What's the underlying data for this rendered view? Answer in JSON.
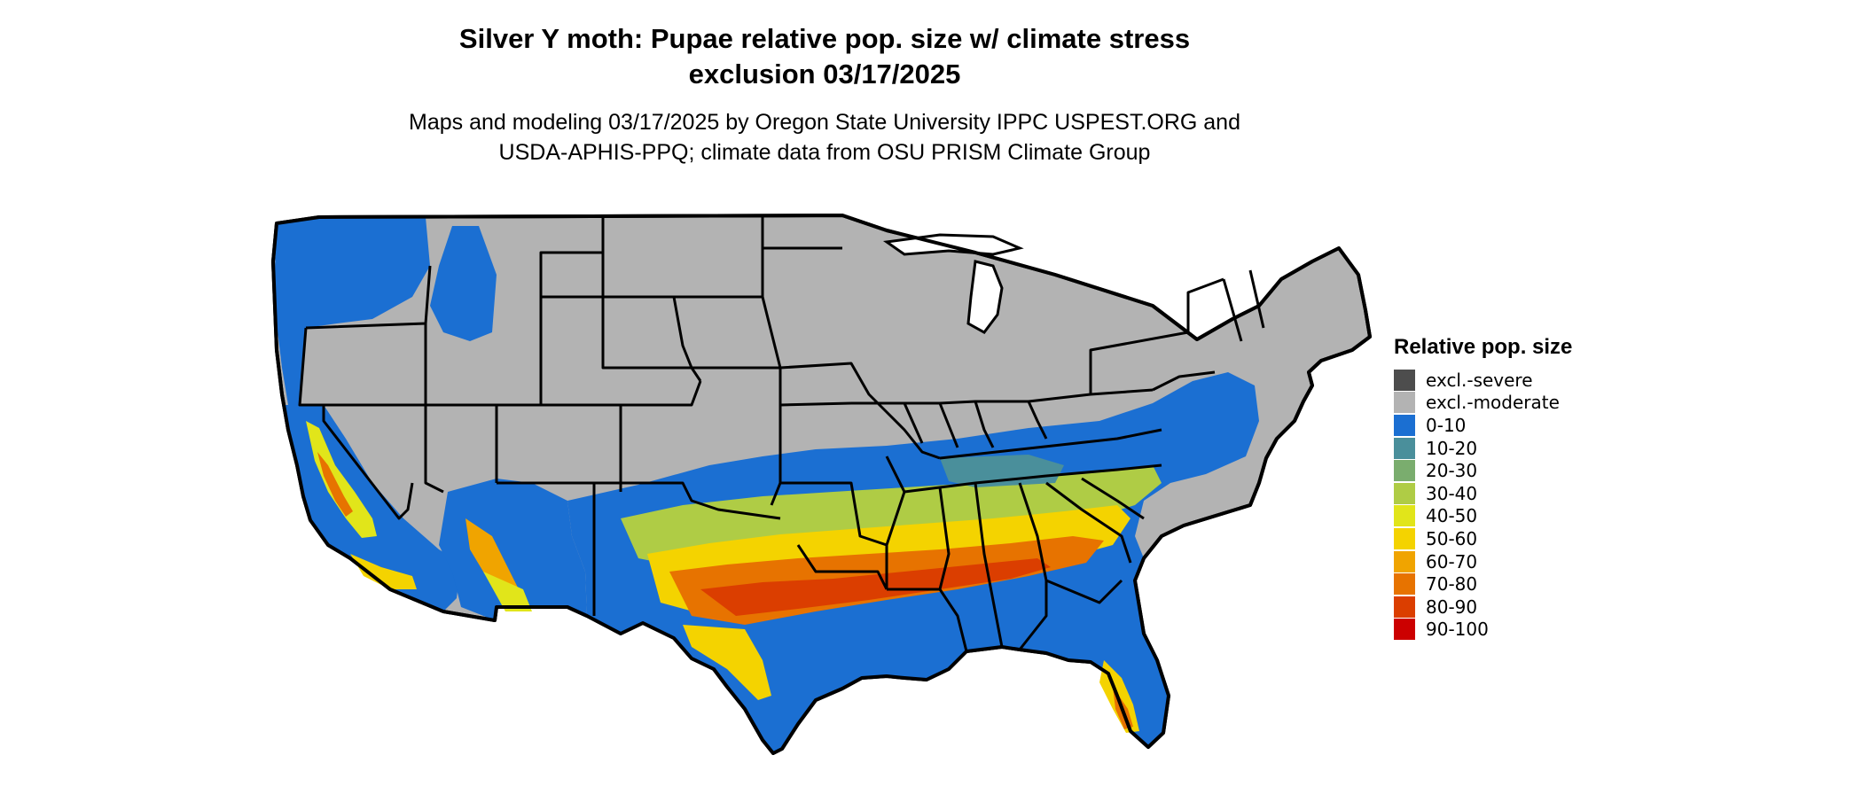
{
  "title": {
    "line1": "Silver Y moth: Pupae relative pop. size w/ climate stress",
    "line2": "exclusion 03/17/2025"
  },
  "subtitle": {
    "line1": "Maps and modeling 03/17/2025 by Oregon State University IPPC USPEST.ORG and",
    "line2": "USDA-APHIS-PPQ; climate data from OSU PRISM Climate Group"
  },
  "legend": {
    "title": "Relative pop. size",
    "items": [
      {
        "label": "excl.-severe",
        "color": "#4d4d4d"
      },
      {
        "label": "excl.-moderate",
        "color": "#b3b3b3"
      },
      {
        "label": "0-10",
        "color": "#1b6fd2"
      },
      {
        "label": "10-20",
        "color": "#4a8f9b"
      },
      {
        "label": "20-30",
        "color": "#7aad6e"
      },
      {
        "label": "30-40",
        "color": "#afcc45"
      },
      {
        "label": "40-50",
        "color": "#e1e51a"
      },
      {
        "label": "50-60",
        "color": "#f4d300"
      },
      {
        "label": "60-70",
        "color": "#f0a400"
      },
      {
        "label": "70-80",
        "color": "#e77300"
      },
      {
        "label": "80-90",
        "color": "#db3e00"
      },
      {
        "label": "90-100",
        "color": "#cc0000"
      }
    ]
  }
}
